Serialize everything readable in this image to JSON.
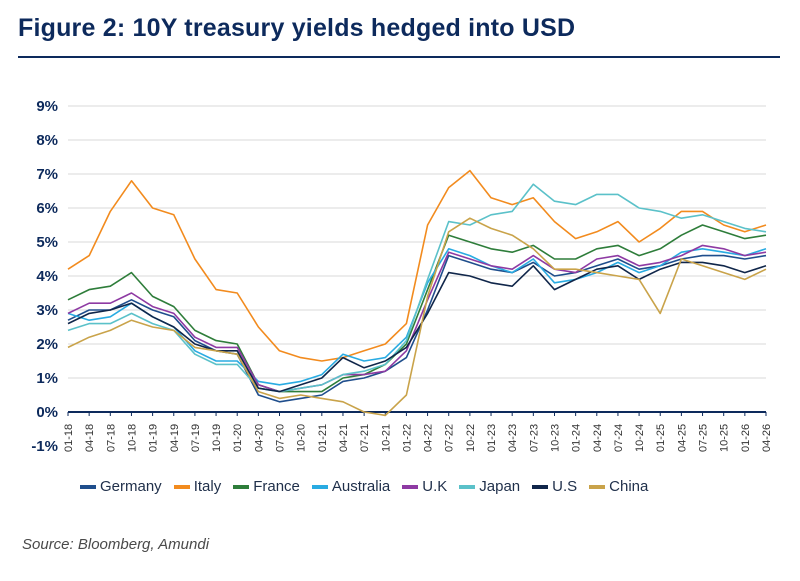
{
  "header": {
    "title": "Figure 2: 10Y treasury yields hedged into USD"
  },
  "footer": {
    "source": "Source: Bloomberg, Amundi"
  },
  "chart_data": {
    "type": "line",
    "title": "Figure 2: 10Y treasury yields hedged into USD",
    "xlabel": "",
    "ylabel": "",
    "ylim": [
      -1,
      9
    ],
    "yticks": [
      "-1%",
      "0%",
      "1%",
      "2%",
      "3%",
      "4%",
      "5%",
      "6%",
      "7%",
      "8%",
      "9%"
    ],
    "ytick_values": [
      -1,
      0,
      1,
      2,
      3,
      4,
      5,
      6,
      7,
      8,
      9
    ],
    "x_ticks": [
      "01-18",
      "04-18",
      "07-18",
      "10-18",
      "01-19",
      "04-19",
      "07-19",
      "10-19",
      "01-20",
      "04-20",
      "07-20",
      "10-20",
      "01-21",
      "04-21",
      "07-21",
      "10-21",
      "01-22",
      "04-22",
      "07-22",
      "10-22",
      "01-23",
      "04-23",
      "07-23",
      "10-23",
      "01-24",
      "04-24",
      "07-24",
      "10-24",
      "01-25",
      "04-25",
      "07-25",
      "10-25",
      "01-26",
      "04-26"
    ],
    "grid": true,
    "legend_position": "bottom",
    "x": [
      "01-18",
      "04-18",
      "07-18",
      "10-18",
      "01-19",
      "04-19",
      "07-19",
      "10-19",
      "01-20",
      "04-20",
      "07-20",
      "10-20",
      "01-21",
      "04-21",
      "07-21",
      "10-21",
      "01-22",
      "04-22",
      "07-22",
      "10-22",
      "01-23",
      "04-23",
      "07-23",
      "10-23",
      "01-24",
      "04-24",
      "07-24",
      "10-24",
      "01-25",
      "04-25",
      "07-25",
      "10-25",
      "01-26",
      "04-26"
    ],
    "series": [
      {
        "name": "Germany",
        "color": "#1f4e8c",
        "values": [
          2.7,
          3.0,
          3.0,
          3.3,
          3.0,
          2.8,
          2.1,
          1.8,
          1.7,
          0.5,
          0.3,
          0.4,
          0.5,
          0.9,
          1.0,
          1.2,
          1.6,
          3.0,
          4.6,
          4.4,
          4.2,
          4.1,
          4.4,
          4.0,
          4.1,
          4.3,
          4.5,
          4.2,
          4.3,
          4.5,
          4.6,
          4.6,
          4.5,
          4.6
        ]
      },
      {
        "name": "Italy",
        "color": "#f28b1e",
        "values": [
          4.2,
          4.6,
          5.9,
          6.8,
          6.0,
          5.8,
          4.5,
          3.6,
          3.5,
          2.5,
          1.8,
          1.6,
          1.5,
          1.6,
          1.8,
          2.0,
          2.6,
          5.5,
          6.6,
          7.1,
          6.3,
          6.1,
          6.3,
          5.6,
          5.1,
          5.3,
          5.6,
          5.0,
          5.4,
          5.9,
          5.9,
          5.5,
          5.3,
          5.5
        ]
      },
      {
        "name": "France",
        "color": "#2e7d3a",
        "values": [
          3.3,
          3.6,
          3.7,
          4.1,
          3.4,
          3.1,
          2.4,
          2.1,
          2.0,
          0.8,
          0.6,
          0.6,
          0.6,
          1.0,
          1.1,
          1.4,
          2.0,
          3.6,
          5.2,
          5.0,
          4.8,
          4.7,
          4.9,
          4.5,
          4.5,
          4.8,
          4.9,
          4.6,
          4.8,
          5.2,
          5.5,
          5.3,
          5.1,
          5.2
        ]
      },
      {
        "name": "Australia",
        "color": "#29abe2",
        "values": [
          2.9,
          2.7,
          2.8,
          3.2,
          2.8,
          2.5,
          1.8,
          1.5,
          1.5,
          0.9,
          0.8,
          0.9,
          1.1,
          1.7,
          1.5,
          1.6,
          2.2,
          3.8,
          4.8,
          4.6,
          4.3,
          4.1,
          4.5,
          3.8,
          3.9,
          4.1,
          4.4,
          4.1,
          4.3,
          4.7,
          4.8,
          4.7,
          4.6,
          4.8
        ]
      },
      {
        "name": "U.K",
        "color": "#8e3aa3",
        "values": [
          2.9,
          3.2,
          3.2,
          3.5,
          3.1,
          2.9,
          2.2,
          1.9,
          1.9,
          0.8,
          0.6,
          0.7,
          0.8,
          1.1,
          1.1,
          1.2,
          1.8,
          3.3,
          4.7,
          4.5,
          4.3,
          4.2,
          4.6,
          4.2,
          4.1,
          4.5,
          4.6,
          4.3,
          4.4,
          4.6,
          4.9,
          4.8,
          4.6,
          4.7
        ]
      },
      {
        "name": "Japan",
        "color": "#5bc1c9",
        "values": [
          2.4,
          2.6,
          2.6,
          2.9,
          2.6,
          2.4,
          1.7,
          1.4,
          1.4,
          0.7,
          0.6,
          0.7,
          0.8,
          1.1,
          1.2,
          1.4,
          2.1,
          3.9,
          5.6,
          5.5,
          5.8,
          5.9,
          6.7,
          6.2,
          6.1,
          6.4,
          6.4,
          6.0,
          5.9,
          5.7,
          5.8,
          5.6,
          5.4,
          5.3
        ]
      },
      {
        "name": "U.S",
        "color": "#10264a",
        "values": [
          2.6,
          2.9,
          3.0,
          3.2,
          2.8,
          2.5,
          2.0,
          1.8,
          1.8,
          0.7,
          0.6,
          0.8,
          1.0,
          1.6,
          1.3,
          1.5,
          1.9,
          2.9,
          4.1,
          4.0,
          3.8,
          3.7,
          4.3,
          3.6,
          3.9,
          4.2,
          4.3,
          3.9,
          4.2,
          4.4,
          4.4,
          4.3,
          4.1,
          4.3
        ]
      },
      {
        "name": "China",
        "color": "#c9a34a",
        "values": [
          1.9,
          2.2,
          2.4,
          2.7,
          2.5,
          2.4,
          1.9,
          1.8,
          1.7,
          0.6,
          0.4,
          0.5,
          0.4,
          0.3,
          0.0,
          -0.1,
          0.5,
          3.4,
          5.3,
          5.7,
          5.4,
          5.2,
          4.8,
          4.2,
          4.2,
          4.1,
          4.0,
          3.9,
          2.9,
          4.5,
          4.3,
          4.1,
          3.9,
          4.2
        ]
      }
    ]
  }
}
